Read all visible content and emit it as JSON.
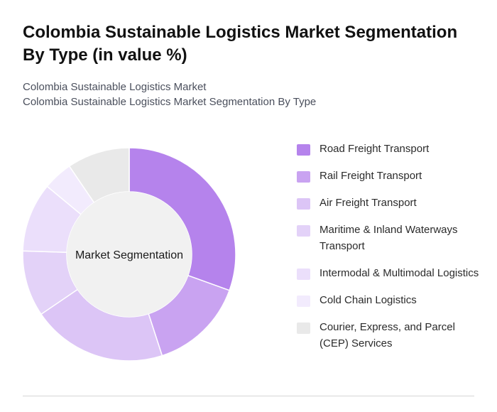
{
  "title": "Colombia Sustainable Logistics Market Segmentation By Type (in value %)",
  "subtitle_line1": "Colombia Sustainable Logistics Market",
  "subtitle_line2": "Colombia Sustainable Logistics Market Segmentation By Type",
  "chart_data": {
    "type": "pie",
    "donut": true,
    "center_label": "Market Segmentation",
    "legend_position": "right",
    "units": "%",
    "categories": [
      "Road Freight Transport",
      "Rail Freight Transport",
      "Air Freight Transport",
      "Maritime & Inland Waterways Transport",
      "Intermodal & Multimodal Logistics",
      "Cold Chain Logistics",
      "Courier, Express, and Parcel (CEP) Services"
    ],
    "values": [
      30.5,
      14.5,
      20.5,
      10,
      10.5,
      4.5,
      9.5
    ],
    "colors": [
      "#b583ec",
      "#c9a3f1",
      "#dcc5f6",
      "#e3d2f8",
      "#ebdffb",
      "#f2ebfd",
      "#e9e9e9"
    ]
  }
}
